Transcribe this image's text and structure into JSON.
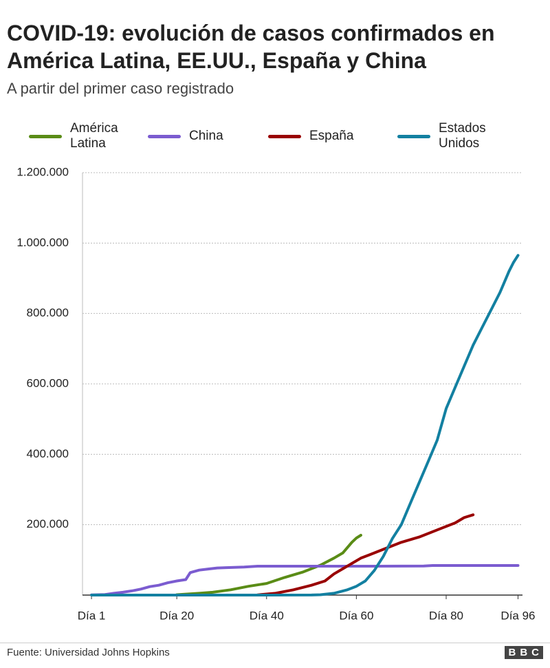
{
  "chart_data": {
    "type": "line",
    "title": "COVID-19: evolución de casos confirmados en América Latina, EE.UU., España y China",
    "subtitle": "A partir del primer caso registrado",
    "source": "Fuente: Universidad Johns Hopkins",
    "logo": "BBC",
    "xlim": [
      -1,
      97
    ],
    "xticks": [
      {
        "value": 1,
        "label": "Día 1"
      },
      {
        "value": 20,
        "label": "Día 20"
      },
      {
        "value": 40,
        "label": "Día 40"
      },
      {
        "value": 60,
        "label": "Día 60"
      },
      {
        "value": 80,
        "label": "Día 80"
      },
      {
        "value": 96,
        "label": "Día 96"
      }
    ],
    "ylim": [
      0,
      1200000
    ],
    "yticks": [
      {
        "value": 200000,
        "label": "200.000"
      },
      {
        "value": 400000,
        "label": "400.000"
      },
      {
        "value": 600000,
        "label": "600.000"
      },
      {
        "value": 800000,
        "label": "800.000"
      },
      {
        "value": 1000000,
        "label": "1.000.000"
      },
      {
        "value": 1200000,
        "label": "1.200.000"
      }
    ],
    "grid": true,
    "series": [
      {
        "name": "América Latina",
        "color": "#5a8c16",
        "x": [
          20,
          25,
          28,
          32,
          36,
          40,
          44,
          48,
          52,
          55,
          57,
          58,
          59,
          60,
          61
        ],
        "values": [
          1000,
          5000,
          8000,
          15000,
          25000,
          33000,
          50000,
          65000,
          85000,
          105000,
          120000,
          135000,
          150000,
          162000,
          170000
        ]
      },
      {
        "name": "China",
        "color": "#7b5cd0",
        "x": [
          1,
          4,
          6,
          8,
          10,
          12,
          14,
          16,
          18,
          20,
          22,
          23,
          25,
          27,
          29,
          31,
          35,
          38,
          45,
          55,
          65,
          75,
          77,
          85,
          96
        ],
        "values": [
          500,
          1500,
          5000,
          8000,
          12000,
          17000,
          24000,
          28000,
          35000,
          40000,
          44000,
          64000,
          71000,
          74000,
          77000,
          78000,
          79500,
          82000,
          82000,
          82000,
          82000,
          82500,
          84000,
          84000,
          84000
        ]
      },
      {
        "name": "España",
        "color": "#990000",
        "x": [
          38,
          42,
          46,
          50,
          53,
          55,
          57,
          59,
          61,
          63,
          66,
          70,
          74,
          78,
          82,
          84,
          86
        ],
        "values": [
          500,
          5000,
          15000,
          28000,
          40000,
          60000,
          75000,
          90000,
          105000,
          115000,
          130000,
          150000,
          165000,
          185000,
          205000,
          220000,
          228000
        ]
      },
      {
        "name": "Estados Unidos",
        "color": "#1380a1",
        "x": [
          1,
          20,
          40,
          50,
          52,
          55,
          58,
          60,
          62,
          64,
          66,
          68,
          70,
          72,
          74,
          76,
          78,
          80,
          82,
          84,
          86,
          88,
          90,
          92,
          94,
          95,
          96
        ],
        "values": [
          0,
          0,
          50,
          100,
          1000,
          5000,
          15000,
          25000,
          40000,
          70000,
          110000,
          160000,
          200000,
          260000,
          320000,
          380000,
          440000,
          530000,
          590000,
          650000,
          710000,
          760000,
          810000,
          860000,
          920000,
          945000,
          965000
        ]
      }
    ]
  }
}
